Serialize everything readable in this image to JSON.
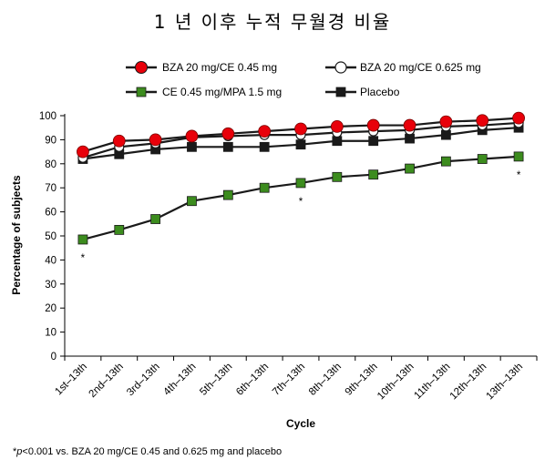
{
  "page_title": "1 년 이후 누적 무월경 비율",
  "footnote": {
    "prefix": "*",
    "p": "p",
    "text": "<0.001 vs. BZA 20 mg/CE 0.45 and 0.625 mg and placebo"
  },
  "colors": {
    "bza045": "#e8000a",
    "bza0625": "#ffffff",
    "ce_mpa": "#3c8c1e",
    "placebo": "#1a1a1a",
    "line": "#1a1a1a"
  },
  "chart_data": {
    "type": "line",
    "title": "1 년 이후 누적 무월경 비율",
    "xlabel": "Cycle",
    "ylabel": "Percentage of subjects",
    "ylim": [
      0,
      100
    ],
    "yticks": [
      0,
      10,
      20,
      30,
      40,
      50,
      60,
      70,
      80,
      90,
      100
    ],
    "categories": [
      "1st–13th",
      "2nd–13th",
      "3rd–13th",
      "4th–13th",
      "5th–13th",
      "6th–13th",
      "7th–13th",
      "8th–13th",
      "9th–13th",
      "10th–13th",
      "11th–13th",
      "12th–13th",
      "13th–13th"
    ],
    "legend_placement": "top",
    "grid": false,
    "series": [
      {
        "name": "BZA 20 mg/CE 0.45 mg",
        "marker": "circle",
        "color": "#e8000a",
        "values": [
          85,
          89.5,
          90,
          91.5,
          92.5,
          93.5,
          94.5,
          95.5,
          96,
          96,
          97.5,
          98,
          99
        ]
      },
      {
        "name": "BZA 20 mg/CE 0.625 mg",
        "marker": "circle-open",
        "color": "#ffffff",
        "values": [
          82.5,
          87,
          88.5,
          91,
          91.5,
          92,
          92,
          93,
          93.5,
          94,
          95.5,
          96,
          97
        ]
      },
      {
        "name": "CE 0.45 mg/MPA 1.5 mg",
        "marker": "square",
        "color": "#3c8c1e",
        "values": [
          48.5,
          52.5,
          57,
          64.5,
          67,
          70,
          72,
          74.5,
          75.5,
          78,
          81,
          82,
          83
        ]
      },
      {
        "name": "Placebo",
        "marker": "square",
        "color": "#1a1a1a",
        "values": [
          82,
          84,
          86,
          87,
          87,
          87,
          88,
          89.5,
          89.5,
          90.5,
          92,
          94,
          95
        ]
      }
    ],
    "annotations": [
      {
        "category": "1st–13th",
        "text": "*"
      },
      {
        "category": "7th–13th",
        "text": "*"
      },
      {
        "category": "13th–13th",
        "text": "*"
      }
    ]
  }
}
